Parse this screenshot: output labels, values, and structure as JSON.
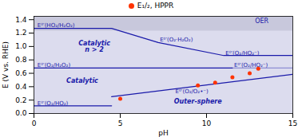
{
  "chart_data": {
    "type": "scatter",
    "xlabel": "pH",
    "ylabel": "E (V vs. RHE)",
    "xlim": [
      0,
      15
    ],
    "ylim": [
      0.0,
      1.45
    ],
    "xticks": [
      0,
      5,
      10,
      15
    ],
    "yticks": [
      {
        "value": 0.0,
        "label": "0.0"
      },
      0.2,
      0.4,
      0.6,
      0.8,
      {
        "value": 1.0,
        "label": "1.0"
      },
      1.2,
      1.4
    ],
    "background": "#dcdcee",
    "text_color": "#1a1aaa",
    "legend": "top",
    "series": [
      {
        "name": "E₁/₂, HPPR",
        "color": "#ff3300",
        "x": [
          5.0,
          9.5,
          10.5,
          11.5,
          12.5,
          13.0
        ],
        "values": [
          0.22,
          0.42,
          0.46,
          0.54,
          0.6,
          0.67
        ]
      }
    ],
    "lines": [
      {
        "x": [
          0,
          4.5,
          7.2,
          11.0,
          15
        ],
        "values": [
          1.27,
          1.27,
          1.06,
          0.865,
          0.865
        ],
        "color": "#1a1aaa",
        "line_style": "solid"
      },
      {
        "x": [
          0,
          11.5
        ],
        "values": [
          0.68,
          0.68
        ],
        "color": "#1a1aaa",
        "line_style": "solid"
      },
      {
        "x": [
          11.5,
          15
        ],
        "values": [
          0.68,
          0.68
        ],
        "color": "#1a1aaa",
        "line_style": "faint"
      },
      {
        "x": [
          4.5,
          15
        ],
        "values": [
          0.25,
          0.585
        ],
        "color": "#1a1aaa",
        "line_style": "solid"
      },
      {
        "x": [
          0,
          4.5
        ],
        "values": [
          0.115,
          0.115
        ],
        "color": "#1a1aaa",
        "line_style": "solid"
      }
    ],
    "bands": [
      {
        "label": "OER",
        "xlim": [
          0,
          15
        ],
        "ylim": [
          1.23,
          1.45
        ],
        "color": "#c8c8dc",
        "label_x": 13.2,
        "label_y": 1.375
      }
    ],
    "region_labels": [
      {
        "text": "Catalytic\nn > 2",
        "x": 3.5,
        "y": 1.0
      },
      {
        "text": "Catalytic",
        "x": 2.8,
        "y": 0.49
      },
      {
        "text": "Outer-sphere",
        "x": 9.5,
        "y": 0.175
      }
    ],
    "line_labels": [
      {
        "text": "E⁰′(HO₂/H₂O₂)",
        "x": 0.2,
        "y": 1.285
      },
      {
        "text": "E⁰′(O₂·H₂O₂)",
        "x": 7.3,
        "y": 1.075
      },
      {
        "text": "E⁰′(O₂/HO₂⁻)",
        "x": 11.1,
        "y": 0.875
      },
      {
        "text": "E⁰′(O₂/H₂O₂)",
        "x": 0.2,
        "y": 0.69
      },
      {
        "text": "E⁰′(O₂/HO₂⁻)",
        "x": 11.6,
        "y": 0.69
      },
      {
        "text": "E⁰′(O₂/O₂•⁻)",
        "x": 8.2,
        "y": 0.3
      },
      {
        "text": "E⁰′(O₂/HO₂)",
        "x": 0.2,
        "y": 0.125
      }
    ]
  }
}
